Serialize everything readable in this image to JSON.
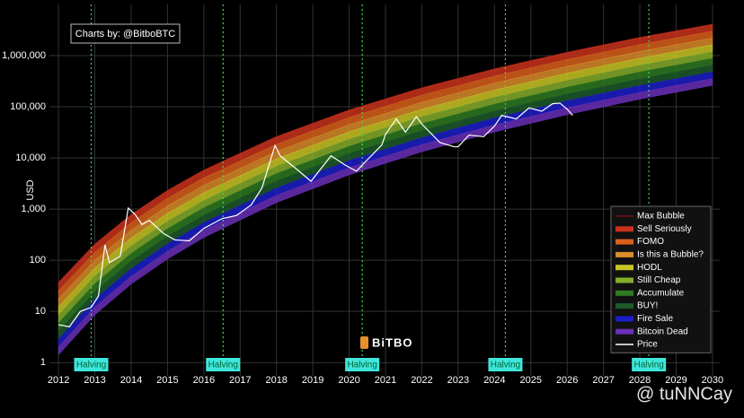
{
  "chart_data": {
    "type": "rainbow",
    "y_label": "USD",
    "credit": "Charts by: @BitboBTC",
    "logo": "BiTBO",
    "watermark": "@ tuNNCay",
    "log_scale": true,
    "grid": true,
    "legend_position": "lower right",
    "xlim": [
      2011.75,
      2030.2
    ],
    "xticks": [
      2012,
      2013,
      2014,
      2015,
      2016,
      2017,
      2018,
      2019,
      2020,
      2021,
      2022,
      2023,
      2024,
      2025,
      2026,
      2027,
      2028,
      2029,
      2030
    ],
    "ylim": [
      0.55,
      10000000
    ],
    "yticks": [
      1,
      10,
      100,
      {
        "value": 1000,
        "label": "1,000"
      },
      {
        "value": 10000,
        "label": "10,000"
      },
      {
        "value": 100000,
        "label": "100,000"
      },
      {
        "value": 1000000,
        "label": "1,000,000"
      }
    ],
    "x": [
      2012,
      2013,
      2014,
      2015,
      2016,
      2018,
      2020,
      2022,
      2024,
      2026,
      2028,
      2030
    ],
    "series": [
      {
        "name": "Max Bubble",
        "color": "#7a1010",
        "kind": "line",
        "values": [
          36.3,
          204,
          771,
          2290,
          5730,
          25800,
          85500,
          232000,
          545000,
          1150000,
          2240000,
          4060000
        ]
      },
      {
        "name": "Sell Seriously",
        "color": "#c8321c",
        "kind": "band",
        "values": [
          25.3,
          143,
          545,
          1630,
          4090,
          18500,
          61900,
          169000,
          397000,
          841000,
          1640000,
          3000000
        ]
      },
      {
        "name": "FOMO",
        "color": "#d9601c",
        "kind": "band",
        "values": [
          17.7,
          101,
          385,
          1160,
          2920,
          13400,
          44800,
          122000,
          290000,
          617000,
          1210000,
          2210000
        ]
      },
      {
        "name": "Is this a Bubble?",
        "color": "#d98c2a",
        "kind": "band",
        "values": [
          12.3,
          70.8,
          273,
          822,
          2090,
          9620,
          32400,
          89100,
          212000,
          453000,
          889000,
          1630000
        ]
      },
      {
        "name": "HODL",
        "color": "#c9c524",
        "kind": "band",
        "values": [
          8.59,
          49.8,
          193,
          585,
          1490,
          6920,
          23500,
          64900,
          155000,
          332000,
          655000,
          1200000
        ]
      },
      {
        "name": "Still Cheap",
        "color": "#86ad2c",
        "kind": "band",
        "values": [
          5.98,
          35.0,
          137,
          416,
          1070,
          4980,
          17000,
          47200,
          113000,
          243000,
          482000,
          887000
        ]
      },
      {
        "name": "Accumulate",
        "color": "#2f7a22",
        "kind": "band",
        "values": [
          4.17,
          24.6,
          96.8,
          296,
          762,
          3580,
          12300,
          34400,
          82600,
          178000,
          354000,
          655000
        ]
      },
      {
        "name": "BUY!",
        "color": "#1d5a2a",
        "kind": "band",
        "values": [
          2.9,
          17.3,
          68.4,
          210,
          545,
          2580,
          8910,
          24900,
          60400,
          131000,
          261000,
          482000
        ]
      },
      {
        "name": "Fire Sale",
        "color": "#1c1ec8",
        "kind": "band",
        "values": [
          2.03,
          12.2,
          48.4,
          150,
          389,
          1860,
          6440,
          18200,
          44100,
          95700,
          191000,
          356000
        ]
      },
      {
        "name": "Bitcoin Dead",
        "color": "#6a2fb8",
        "kind": "band",
        "values": [
          1.41,
          8.55,
          34.3,
          106,
          278,
          1340,
          4670,
          13200,
          32200,
          70100,
          141000,
          262000
        ]
      }
    ],
    "price": {
      "name": "Price",
      "color": "#ffffff",
      "x": [
        2012.0,
        2012.3,
        2012.6,
        2012.9,
        2013.1,
        2013.28,
        2013.4,
        2013.7,
        2013.92,
        2014.1,
        2014.3,
        2014.5,
        2014.9,
        2015.2,
        2015.6,
        2016.0,
        2016.5,
        2016.9,
        2017.3,
        2017.6,
        2017.96,
        2018.1,
        2018.5,
        2018.95,
        2019.5,
        2019.9,
        2020.2,
        2020.5,
        2020.9,
        2021.0,
        2021.3,
        2021.55,
        2021.85,
        2022.0,
        2022.5,
        2022.9,
        2023.0,
        2023.3,
        2023.7,
        2024.0,
        2024.2,
        2024.6,
        2024.95,
        2025.3,
        2025.6,
        2025.8,
        2026.0,
        2026.15
      ],
      "values": [
        5.5,
        5,
        10,
        12,
        20,
        200,
        90,
        120,
        1050,
        800,
        500,
        600,
        330,
        250,
        240,
        420,
        650,
        750,
        1200,
        2600,
        17500,
        11000,
        6500,
        3500,
        11000,
        7200,
        5500,
        9200,
        18000,
        29000,
        58000,
        32000,
        64000,
        46000,
        20000,
        16500,
        16600,
        28000,
        26000,
        42000,
        68000,
        58000,
        95000,
        82000,
        115000,
        118000,
        90000,
        68000
      ]
    },
    "halvings": [
      {
        "x": 2012.9,
        "label": "Halving"
      },
      {
        "x": 2016.53,
        "label": "Halving"
      },
      {
        "x": 2020.36,
        "label": "Halving"
      },
      {
        "x": 2024.3,
        "label": "Halving"
      },
      {
        "x": 2028.25,
        "label": "Halving"
      }
    ]
  }
}
